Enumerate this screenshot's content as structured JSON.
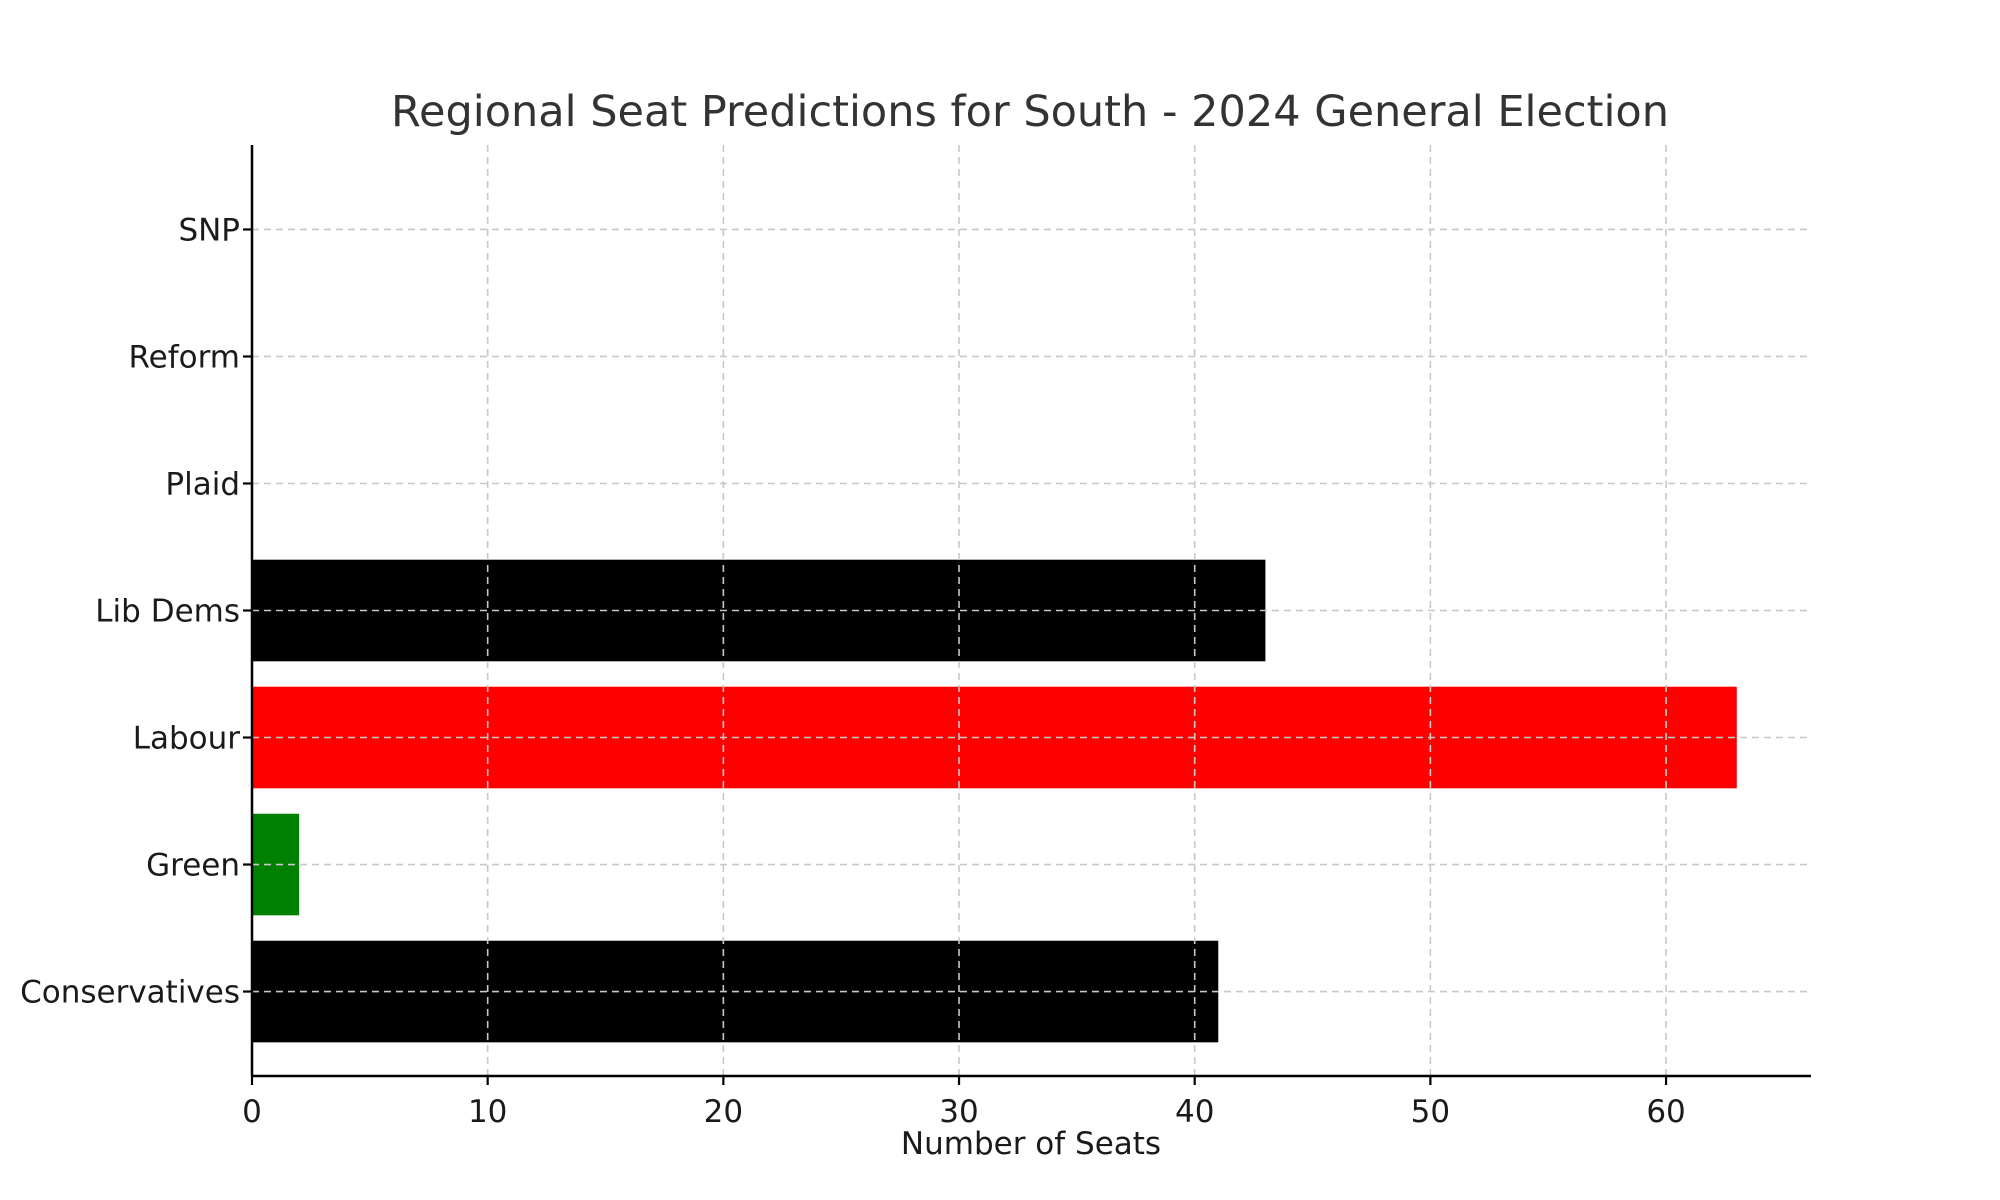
{
  "chart_data": {
    "type": "bar",
    "orientation": "horizontal",
    "title": "Regional Seat Predictions for South - 2024 General Election",
    "xlabel": "Number of Seats",
    "ylabel": "",
    "categories": [
      "Conservatives",
      "Green",
      "Labour",
      "Lib Dems",
      "Plaid",
      "Reform",
      "SNP"
    ],
    "values": [
      41,
      2,
      63,
      43,
      0,
      0,
      0
    ],
    "colors": [
      "#000000",
      "#008000",
      "#ff0000",
      "#000000",
      "#000000",
      "#000000",
      "#000000"
    ],
    "xlim": [
      0,
      66.15
    ],
    "xticks": [
      0,
      10,
      20,
      30,
      40,
      50,
      60
    ],
    "grid": true
  }
}
